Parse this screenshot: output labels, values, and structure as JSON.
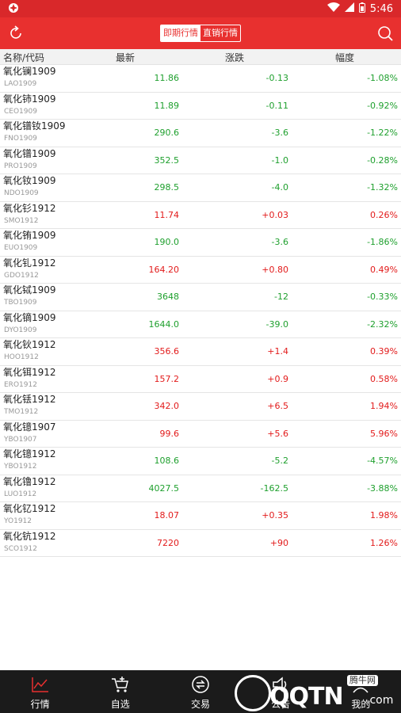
{
  "status_bar": {
    "time": "5:46"
  },
  "header": {
    "tabs": [
      {
        "label": "即期行情",
        "active": true
      },
      {
        "label": "直销行情",
        "active": false
      }
    ]
  },
  "columns": {
    "name": "名称/代码",
    "latest": "最新",
    "change": "涨跌",
    "pct": "幅度"
  },
  "rows": [
    {
      "name": "氧化镧1909",
      "code": "LAO1909",
      "latest": "11.86",
      "change": "-0.13",
      "pct": "-1.08%",
      "dir": "down"
    },
    {
      "name": "氧化铈1909",
      "code": "CEO1909",
      "latest": "11.89",
      "change": "-0.11",
      "pct": "-0.92%",
      "dir": "down"
    },
    {
      "name": "氧化镨钕1909",
      "code": "FNO1909",
      "latest": "290.6",
      "change": "-3.6",
      "pct": "-1.22%",
      "dir": "down"
    },
    {
      "name": "氧化镨1909",
      "code": "PRO1909",
      "latest": "352.5",
      "change": "-1.0",
      "pct": "-0.28%",
      "dir": "down"
    },
    {
      "name": "氧化钕1909",
      "code": "NDO1909",
      "latest": "298.5",
      "change": "-4.0",
      "pct": "-1.32%",
      "dir": "down"
    },
    {
      "name": "氧化钐1912",
      "code": "SMO1912",
      "latest": "11.74",
      "change": "+0.03",
      "pct": "0.26%",
      "dir": "up"
    },
    {
      "name": "氧化铕1909",
      "code": "EUO1909",
      "latest": "190.0",
      "change": "-3.6",
      "pct": "-1.86%",
      "dir": "down"
    },
    {
      "name": "氧化钆1912",
      "code": "GDO1912",
      "latest": "164.20",
      "change": "+0.80",
      "pct": "0.49%",
      "dir": "up"
    },
    {
      "name": "氧化铽1909",
      "code": "TBO1909",
      "latest": "3648",
      "change": "-12",
      "pct": "-0.33%",
      "dir": "down"
    },
    {
      "name": "氧化镝1909",
      "code": "DYO1909",
      "latest": "1644.0",
      "change": "-39.0",
      "pct": "-2.32%",
      "dir": "down"
    },
    {
      "name": "氧化钬1912",
      "code": "HOO1912",
      "latest": "356.6",
      "change": "+1.4",
      "pct": "0.39%",
      "dir": "up"
    },
    {
      "name": "氧化铒1912",
      "code": "ERO1912",
      "latest": "157.2",
      "change": "+0.9",
      "pct": "0.58%",
      "dir": "up"
    },
    {
      "name": "氧化铥1912",
      "code": "TMO1912",
      "latest": "342.0",
      "change": "+6.5",
      "pct": "1.94%",
      "dir": "up"
    },
    {
      "name": "氧化镱1907",
      "code": "YBO1907",
      "latest": "99.6",
      "change": "+5.6",
      "pct": "5.96%",
      "dir": "up"
    },
    {
      "name": "氧化镱1912",
      "code": "YBO1912",
      "latest": "108.6",
      "change": "-5.2",
      "pct": "-4.57%",
      "dir": "down"
    },
    {
      "name": "氧化镥1912",
      "code": "LUO1912",
      "latest": "4027.5",
      "change": "-162.5",
      "pct": "-3.88%",
      "dir": "down"
    },
    {
      "name": "氧化钇1912",
      "code": "YO1912",
      "latest": "18.07",
      "change": "+0.35",
      "pct": "1.98%",
      "dir": "up"
    },
    {
      "name": "氧化钪1912",
      "code": "SCO1912",
      "latest": "7220",
      "change": "+90",
      "pct": "1.26%",
      "dir": "up"
    }
  ],
  "bottom_nav": [
    {
      "label": "行情",
      "icon": "chart-line-icon",
      "active": true
    },
    {
      "label": "自选",
      "icon": "cart-plus-icon",
      "active": false
    },
    {
      "label": "交易",
      "icon": "exchange-icon",
      "active": false
    },
    {
      "label": "公告",
      "icon": "speaker-icon",
      "active": false
    },
    {
      "label": "我的",
      "icon": "user-icon",
      "active": false
    }
  ],
  "watermark": {
    "text": "QQTN",
    "badge": "腾牛网",
    "suffix": ".com"
  },
  "colors": {
    "header": "#e8302f",
    "up": "#e21b1b",
    "down": "#1fa02e",
    "nav_bg": "#1b1b1b"
  }
}
